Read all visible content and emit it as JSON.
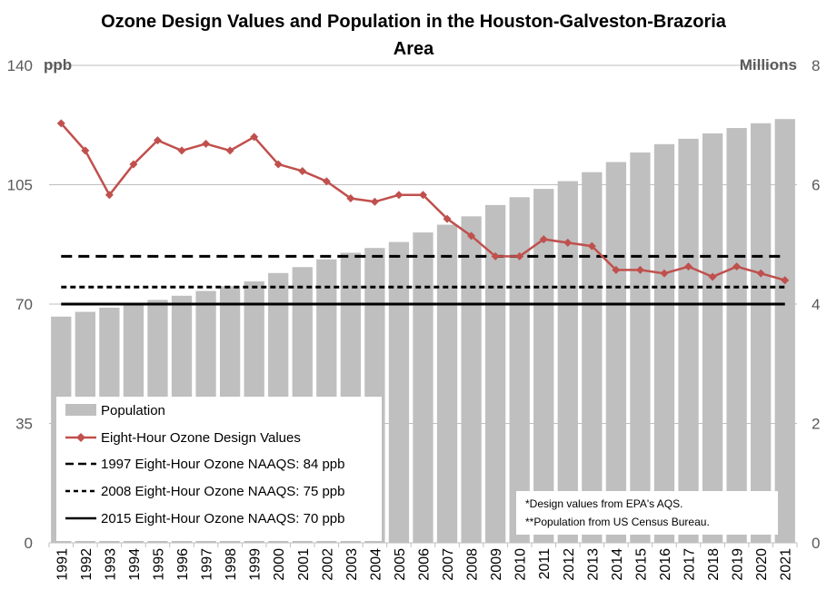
{
  "chart_data": {
    "type": "bar",
    "title_line1": "Ozone Design Values and Population in the Houston-Galveston-Brazoria",
    "title_line2": "Area",
    "y_left_unit": "ppb",
    "y_right_unit": "Millions",
    "y_left_ticks": [
      "140",
      "105",
      "70",
      "35",
      "0"
    ],
    "y_right_ticks": [
      "8",
      "6",
      "4",
      "2",
      "0"
    ],
    "ylim_left": [
      0,
      140
    ],
    "ylim_right": [
      0,
      8
    ],
    "grid": true,
    "categories": [
      "1991",
      "1992",
      "1993",
      "1994",
      "1995",
      "1996",
      "1997",
      "1998",
      "1999",
      "2000",
      "2001",
      "2002",
      "2003",
      "2004",
      "2005",
      "2006",
      "2007",
      "2008",
      "2009",
      "2010",
      "2011",
      "2012",
      "2013",
      "2014",
      "2015",
      "2016",
      "2017",
      "2018",
      "2019",
      "2020",
      "2021"
    ],
    "series": [
      {
        "name": "Population",
        "axis": "right",
        "kind": "bar",
        "color": "#bfbfbf",
        "values": [
          3.79,
          3.87,
          3.94,
          4.0,
          4.07,
          4.14,
          4.22,
          4.3,
          4.38,
          4.52,
          4.62,
          4.75,
          4.86,
          4.94,
          5.04,
          5.2,
          5.33,
          5.47,
          5.66,
          5.79,
          5.93,
          6.06,
          6.21,
          6.38,
          6.54,
          6.68,
          6.77,
          6.86,
          6.95,
          7.03,
          7.1
        ]
      },
      {
        "name": "Eight-Hour Ozone Design Values",
        "axis": "left",
        "kind": "line",
        "color": "#c0504d",
        "values": [
          123,
          115,
          102,
          111,
          118,
          115,
          117,
          115,
          119,
          111,
          109,
          106,
          101,
          100,
          102,
          102,
          95,
          90,
          84,
          84,
          89,
          88,
          87,
          80,
          80,
          79,
          81,
          78,
          81,
          79,
          77
        ]
      },
      {
        "name": "1997 Eight-Hour Ozone NAAQS: 84 ppb",
        "axis": "left",
        "kind": "hline",
        "value": 84,
        "style": "long-dash"
      },
      {
        "name": "2008 Eight-Hour Ozone NAAQS: 75 ppb",
        "axis": "left",
        "kind": "hline",
        "value": 75,
        "style": "short-dash"
      },
      {
        "name": "2015 Eight-Hour Ozone NAAQS: 70 ppb",
        "axis": "left",
        "kind": "hline",
        "value": 70,
        "style": "solid"
      }
    ],
    "legend": {
      "placement": "bottom-left",
      "entries": [
        "Population",
        "Eight-Hour Ozone Design Values",
        "1997 Eight-Hour Ozone NAAQS: 84 ppb",
        "2008 Eight-Hour Ozone NAAQS: 75 ppb",
        "2015 Eight-Hour Ozone NAAQS: 70 ppb"
      ]
    },
    "notes": [
      "*Design values from EPA's AQS.",
      "**Population from US Census Bureau."
    ]
  }
}
